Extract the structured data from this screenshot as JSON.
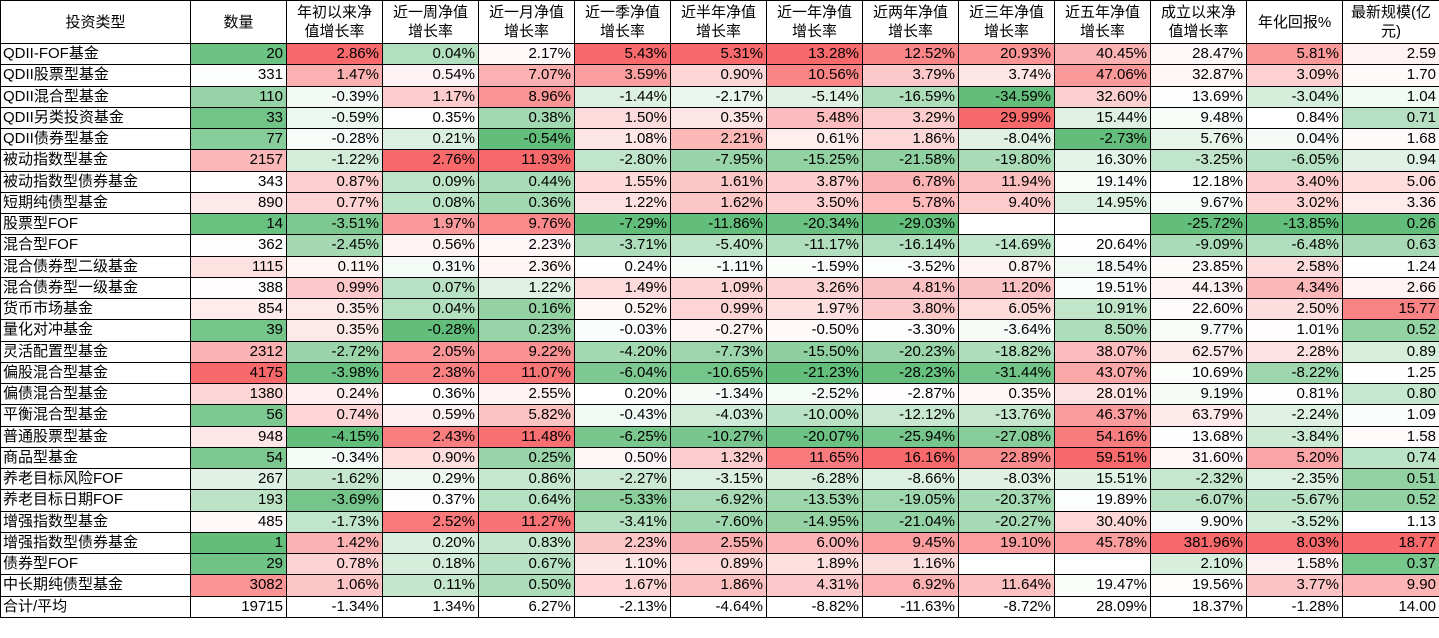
{
  "headers": [
    "投资类型",
    "数量",
    "年初以来净值增长率",
    "近一周净值增长率",
    "近一月净值增长率",
    "近一季净值增长率",
    "近半年净值增长率",
    "近一年净值增长率",
    "近两年净值增长率",
    "近三年净值增长率",
    "近五年净值增长率",
    "成立以来净值增长率",
    "年化回报%",
    "最新规模(亿元)"
  ],
  "color_scale": {
    "min": "#63BE7B",
    "mid": "#FFFFFF",
    "max": "#F8696B"
  },
  "rows": [
    [
      "QDII-FOF基金",
      "20",
      "2.86%",
      "0.04%",
      "2.17%",
      "5.43%",
      "5.31%",
      "13.28%",
      "12.52%",
      "20.93%",
      "40.45%",
      "28.47%",
      "5.81%",
      "2.59"
    ],
    [
      "QDII股票型基金",
      "331",
      "1.47%",
      "0.54%",
      "7.07%",
      "3.59%",
      "0.90%",
      "10.56%",
      "3.79%",
      "3.74%",
      "47.06%",
      "32.87%",
      "3.09%",
      "1.70"
    ],
    [
      "QDII混合型基金",
      "110",
      "-0.39%",
      "1.17%",
      "8.96%",
      "-1.44%",
      "-2.17%",
      "-5.14%",
      "-16.59%",
      "-34.59%",
      "32.60%",
      "13.69%",
      "-3.04%",
      "1.04"
    ],
    [
      "QDII另类投资基金",
      "33",
      "-0.59%",
      "0.35%",
      "0.38%",
      "1.50%",
      "0.35%",
      "5.48%",
      "3.29%",
      "29.99%",
      "15.44%",
      "9.48%",
      "0.84%",
      "0.71"
    ],
    [
      "QDII债券型基金",
      "77",
      "-0.28%",
      "0.21%",
      "-0.54%",
      "1.08%",
      "2.21%",
      "0.61%",
      "1.86%",
      "-8.04%",
      "-2.73%",
      "5.76%",
      "0.04%",
      "1.68"
    ],
    [
      "被动指数型基金",
      "2157",
      "-1.22%",
      "2.76%",
      "11.93%",
      "-2.80%",
      "-7.95%",
      "-15.25%",
      "-21.58%",
      "-19.80%",
      "16.30%",
      "-3.25%",
      "-6.05%",
      "0.94"
    ],
    [
      "被动指数型债券基金",
      "343",
      "0.87%",
      "0.09%",
      "0.44%",
      "1.55%",
      "1.61%",
      "3.87%",
      "6.78%",
      "11.94%",
      "19.14%",
      "12.18%",
      "3.40%",
      "5.06"
    ],
    [
      "短期纯债型基金",
      "890",
      "0.77%",
      "0.08%",
      "0.36%",
      "1.22%",
      "1.62%",
      "3.50%",
      "5.78%",
      "9.40%",
      "14.95%",
      "9.67%",
      "3.02%",
      "3.36"
    ],
    [
      "股票型FOF",
      "14",
      "-3.51%",
      "1.97%",
      "9.76%",
      "-7.29%",
      "-11.86%",
      "-20.34%",
      "-29.03%",
      "",
      "",
      "-25.72%",
      "-13.85%",
      "0.26"
    ],
    [
      "混合型FOF",
      "362",
      "-2.45%",
      "0.56%",
      "2.23%",
      "-3.71%",
      "-5.40%",
      "-11.17%",
      "-16.14%",
      "-14.69%",
      "20.64%",
      "-9.09%",
      "-6.48%",
      "0.63"
    ],
    [
      "混合债券型二级基金",
      "1115",
      "0.11%",
      "0.31%",
      "2.36%",
      "0.24%",
      "-1.11%",
      "-1.59%",
      "-3.52%",
      "0.87%",
      "18.54%",
      "23.85%",
      "2.58%",
      "1.24"
    ],
    [
      "混合债券型一级基金",
      "388",
      "0.99%",
      "0.07%",
      "1.22%",
      "1.49%",
      "1.09%",
      "3.26%",
      "4.81%",
      "11.20%",
      "19.51%",
      "44.13%",
      "4.34%",
      "2.66"
    ],
    [
      "货币市场基金",
      "854",
      "0.35%",
      "0.04%",
      "0.16%",
      "0.52%",
      "0.99%",
      "1.97%",
      "3.80%",
      "6.05%",
      "10.91%",
      "22.60%",
      "2.50%",
      "15.77"
    ],
    [
      "量化对冲基金",
      "39",
      "0.35%",
      "-0.28%",
      "0.23%",
      "-0.03%",
      "-0.27%",
      "-0.50%",
      "-3.30%",
      "-3.64%",
      "8.50%",
      "9.77%",
      "1.01%",
      "0.52"
    ],
    [
      "灵活配置型基金",
      "2312",
      "-2.72%",
      "2.05%",
      "9.22%",
      "-4.20%",
      "-7.73%",
      "-15.50%",
      "-20.23%",
      "-18.82%",
      "38.07%",
      "62.57%",
      "2.28%",
      "0.89"
    ],
    [
      "偏股混合型基金",
      "4175",
      "-3.98%",
      "2.38%",
      "11.07%",
      "-6.04%",
      "-10.65%",
      "-21.23%",
      "-28.23%",
      "-31.44%",
      "43.07%",
      "10.69%",
      "-8.22%",
      "1.25"
    ],
    [
      "偏债混合型基金",
      "1380",
      "0.24%",
      "0.36%",
      "2.55%",
      "0.20%",
      "-1.34%",
      "-2.52%",
      "-2.87%",
      "0.35%",
      "28.01%",
      "9.19%",
      "0.81%",
      "0.80"
    ],
    [
      "平衡混合型基金",
      "56",
      "0.74%",
      "0.59%",
      "5.82%",
      "-0.43%",
      "-4.03%",
      "-10.00%",
      "-12.12%",
      "-13.76%",
      "46.37%",
      "63.79%",
      "-2.24%",
      "1.09"
    ],
    [
      "普通股票型基金",
      "948",
      "-4.15%",
      "2.43%",
      "11.48%",
      "-6.25%",
      "-10.27%",
      "-20.07%",
      "-25.94%",
      "-27.08%",
      "54.16%",
      "13.68%",
      "-3.84%",
      "1.58"
    ],
    [
      "商品型基金",
      "54",
      "-0.34%",
      "0.90%",
      "0.25%",
      "0.50%",
      "1.32%",
      "11.65%",
      "16.16%",
      "22.89%",
      "59.51%",
      "31.60%",
      "5.20%",
      "0.74"
    ],
    [
      "养老目标风险FOF",
      "267",
      "-1.62%",
      "0.29%",
      "0.86%",
      "-2.27%",
      "-3.15%",
      "-6.28%",
      "-8.66%",
      "-8.03%",
      "15.51%",
      "-2.32%",
      "-2.35%",
      "0.51"
    ],
    [
      "养老目标日期FOF",
      "193",
      "-3.69%",
      "0.37%",
      "0.64%",
      "-5.33%",
      "-6.92%",
      "-13.53%",
      "-19.05%",
      "-20.37%",
      "19.89%",
      "-6.07%",
      "-5.67%",
      "0.52"
    ],
    [
      "增强指数型基金",
      "485",
      "-1.73%",
      "2.52%",
      "11.27%",
      "-3.41%",
      "-7.60%",
      "-14.95%",
      "-21.04%",
      "-20.27%",
      "30.40%",
      "9.90%",
      "-3.52%",
      "1.13"
    ],
    [
      "增强指数型债券基金",
      "1",
      "1.42%",
      "0.20%",
      "0.83%",
      "2.23%",
      "2.55%",
      "6.00%",
      "9.45%",
      "19.10%",
      "45.78%",
      "381.96%",
      "8.03%",
      "18.77"
    ],
    [
      "债券型FOF",
      "29",
      "0.78%",
      "0.18%",
      "0.67%",
      "1.10%",
      "0.89%",
      "1.89%",
      "1.16%",
      "",
      "",
      "2.10%",
      "1.58%",
      "0.37"
    ],
    [
      "中长期纯债型基金",
      "3082",
      "1.06%",
      "0.11%",
      "0.50%",
      "1.67%",
      "1.86%",
      "4.31%",
      "6.92%",
      "11.64%",
      "19.47%",
      "19.56%",
      "3.77%",
      "9.90"
    ]
  ],
  "total": [
    "合计/平均",
    "19715",
    "-1.34%",
    "1.34%",
    "6.27%",
    "-2.13%",
    "-4.64%",
    "-8.82%",
    "-11.63%",
    "-8.72%",
    "28.09%",
    "18.37%",
    "-1.28%",
    "14.00"
  ]
}
